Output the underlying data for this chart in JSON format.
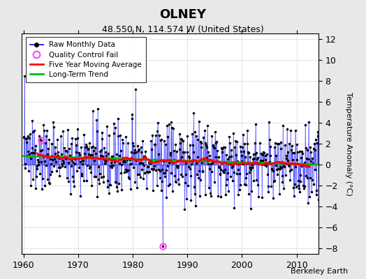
{
  "title": "OLNEY",
  "subtitle": "48.550 N, 114.574 W (United States)",
  "ylabel": "Temperature Anomaly (°C)",
  "credit": "Berkeley Earth",
  "year_start": 1960,
  "year_end": 2015,
  "ylim": [
    -8.5,
    12.5
  ],
  "yticks": [
    -8,
    -6,
    -4,
    -2,
    0,
    2,
    4,
    6,
    8,
    10,
    12
  ],
  "raw_color": "#3333ff",
  "ma_color": "#ff0000",
  "trend_color": "#00bb00",
  "qc_color": "#ff44ff",
  "bg_color": "#ffffff",
  "outer_bg": "#e8e8e8",
  "seed": 137
}
